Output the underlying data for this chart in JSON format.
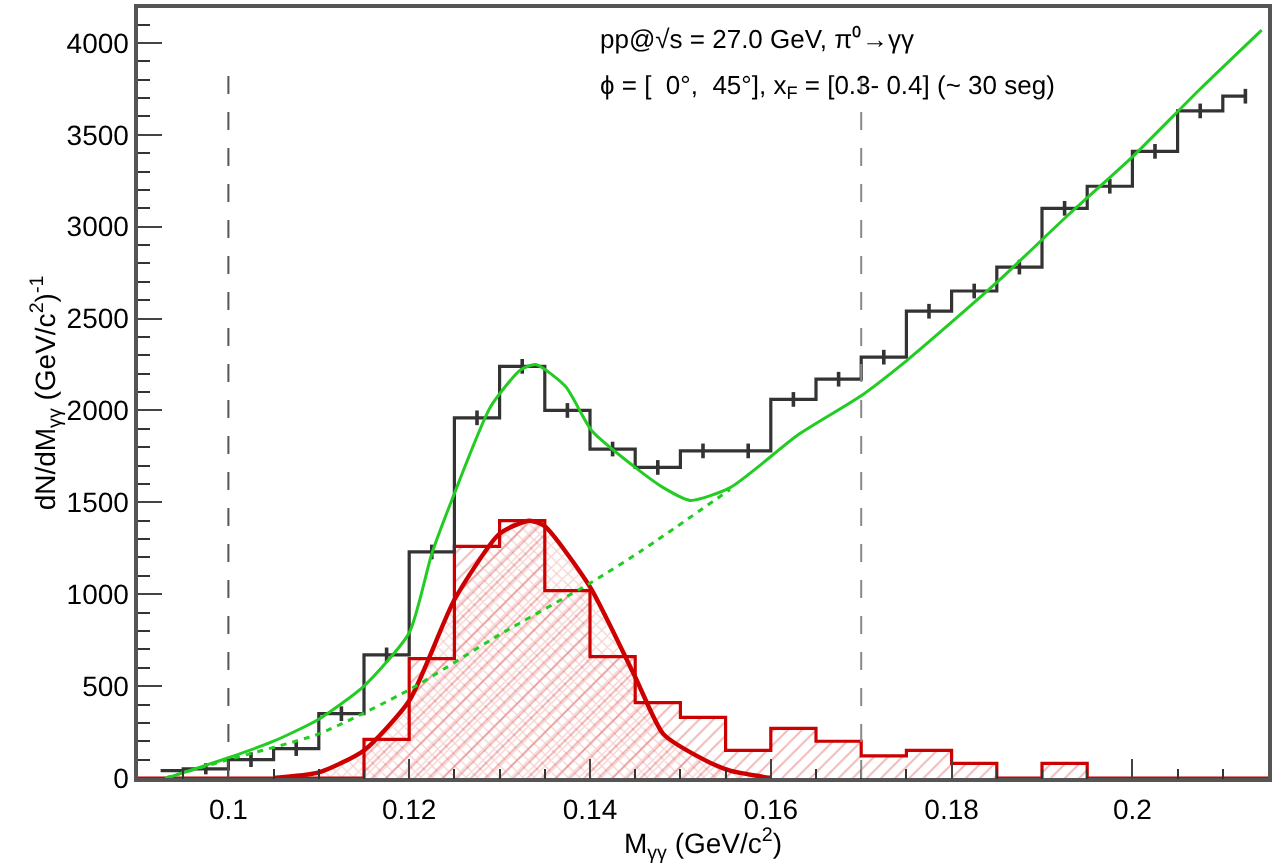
{
  "chart_data": {
    "type": "histogram",
    "xlabel": "M$_{γγ}$ (GeV/c$^{2}$)",
    "ylabel": "dN/dM$_{γγ}$ (GeV/c$^{2}$)$^{-1}$",
    "annotations": [
      "pp@√s = 27.0 GeV, π⁰→γγ",
      "ϕ = [  0°,  45°], x$_{F}$ = [0.3- 0.4] (~ 30 seg)"
    ],
    "bins": [
      0.09,
      0.095,
      0.1,
      0.105,
      0.11,
      0.115,
      0.12,
      0.125,
      0.13,
      0.135,
      0.14,
      0.145,
      0.15,
      0.155,
      0.16,
      0.165,
      0.17,
      0.175,
      0.18,
      0.185,
      0.19,
      0.195,
      0.2,
      0.205,
      0.21,
      0.215
    ],
    "series": [
      {
        "color": "#cc0000",
        "values": [
          0,
          0,
          0,
          0,
          0,
          210,
          650,
          1260,
          1400,
          1020,
          660,
          410,
          330,
          150,
          270,
          200,
          120,
          150,
          80,
          0,
          80,
          0,
          0,
          0,
          0
        ]
      },
      {
        "type": "area",
        "color": "#cc0000",
        "x": [
          0.105,
          0.11,
          0.115,
          0.12,
          0.125,
          0.13,
          0.1333,
          0.135,
          0.14,
          0.145,
          0.1481,
          0.1526,
          0.1555,
          0.16
        ],
        "values": [
          0,
          30,
          150,
          420,
          970,
          1330,
          1400,
          1370,
          1040,
          550,
          240,
          100,
          40,
          0
        ]
      },
      {
        "type": "line",
        "line_style": "dotted",
        "color": "#22cc22",
        "x": [
          0.093,
          0.1,
          0.11,
          0.12,
          0.13,
          0.14,
          0.1458,
          0.1555
        ],
        "values": [
          0,
          100,
          240,
          480,
          780,
          1060,
          1240,
          1570
        ]
      },
      {
        "type": "line",
        "color": "#22cc22",
        "x": [
          0.0932,
          0.1,
          0.105,
          0.11,
          0.115,
          0.12,
          0.1225,
          0.1247,
          0.129,
          0.1323,
          0.134,
          0.1373,
          0.1402,
          0.145,
          0.1481,
          0.1511,
          0.1555,
          0.1631,
          0.17,
          0.175,
          0.18,
          0.1853,
          0.1926,
          0.2,
          0.2073,
          0.2143
        ],
        "values": [
          0,
          110,
          200,
          320,
          500,
          790,
          1220,
          1510,
          2020,
          2220,
          2250,
          2130,
          1890,
          1690,
          1580,
          1510,
          1580,
          1870,
          2080,
          2270,
          2480,
          2710,
          3050,
          3380,
          3740,
          4070
        ]
      },
      {
        "type": "step",
        "color": "#333333",
        "x": [
          0.0925,
          0.0975,
          0.1025,
          0.1075,
          0.1125,
          0.1175,
          0.1225,
          0.1275,
          0.1325,
          0.1375,
          0.1425,
          0.1475,
          0.1525,
          0.1575,
          0.1625,
          0.1675,
          0.1725,
          0.1775,
          0.1825,
          0.1875,
          0.1925,
          0.1975,
          0.2025,
          0.2075,
          0.2125
        ],
        "values": [
          40,
          50,
          100,
          160,
          350,
          670,
          1230,
          1960,
          2240,
          2000,
          1790,
          1690,
          1780,
          1780,
          2060,
          2170,
          2290,
          2540,
          2650,
          2780,
          3100,
          3220,
          3410,
          3630,
          3710
        ],
        "errors": [
          null,
          30,
          40,
          40,
          40,
          40,
          40,
          40,
          40,
          40,
          40,
          40,
          40,
          40,
          40,
          40,
          40,
          40,
          40,
          40,
          40,
          40,
          40,
          40,
          40
        ]
      }
    ],
    "ref_lines": [
      {
        "axis": "x",
        "value": 0.1,
        "color": "#555555",
        "line_style": "dashed"
      },
      {
        "axis": "x",
        "value": 0.17,
        "color": "#888888",
        "line_style": "dashed"
      }
    ],
    "xlim": [
      0.09,
      0.215
    ],
    "ylim": [
      0,
      4190
    ],
    "xticks": [
      0.1,
      0.12,
      0.14,
      0.16,
      0.18,
      0.2
    ],
    "yticks": [
      0,
      500,
      1000,
      1500,
      2000,
      2500,
      3000,
      3500,
      4000
    ]
  }
}
